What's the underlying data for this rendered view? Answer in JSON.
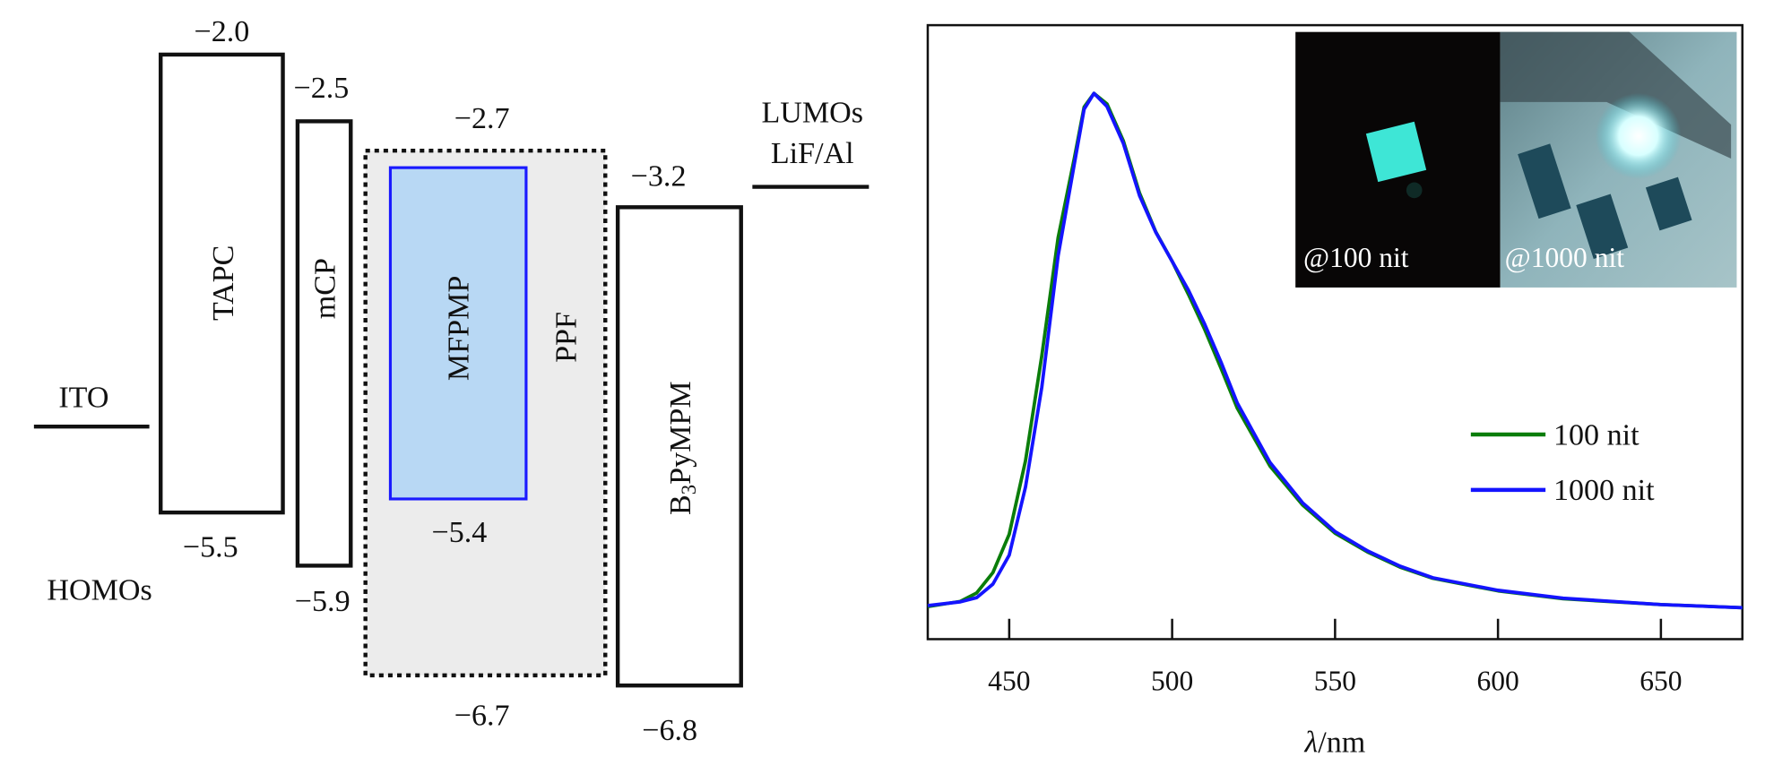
{
  "diagram": {
    "electrodes": {
      "anode": "ITO",
      "cathode": "LiF/Al",
      "lumo_heading": "LUMOs",
      "homo_heading": "HOMOs"
    },
    "layers": [
      {
        "name": "TAPC",
        "lumo": "−2.0",
        "homo": "−5.5"
      },
      {
        "name": "mCP",
        "lumo": "−2.5",
        "homo": "−5.9"
      },
      {
        "name": "PPF",
        "lumo": "−2.7",
        "homo": "−6.7"
      },
      {
        "name": "MFPMP",
        "homo": "−5.4"
      },
      {
        "name_main": "B",
        "name_sub": "3",
        "name_rest": "PyMPM",
        "lumo": "−3.2",
        "homo": "−6.8"
      }
    ],
    "colors": {
      "emitter_fill": "#b8d8f4",
      "emitter_stroke": "#1a1aff",
      "host_fill": "#ececec"
    }
  },
  "chart_data": {
    "type": "line",
    "title": "",
    "xlabel_italic": "λ",
    "xlabel_rest": "/nm",
    "ylabel": "",
    "xlim": [
      425,
      675
    ],
    "ylim": [
      -0.04,
      1.13
    ],
    "xticks": [
      450,
      500,
      550,
      600,
      650
    ],
    "grid": false,
    "legend_position": "right",
    "series": [
      {
        "name": "100 nit",
        "color": "#0a7d0a",
        "x": [
          425,
          435,
          440,
          445,
          450,
          455,
          460,
          465,
          470,
          473,
          476,
          480,
          485,
          490,
          495,
          500,
          505,
          510,
          515,
          520,
          530,
          540,
          550,
          560,
          570,
          580,
          600,
          620,
          650,
          675
        ],
        "y": [
          0.022,
          0.032,
          0.048,
          0.087,
          0.16,
          0.3,
          0.5,
          0.725,
          0.877,
          0.974,
          1.0,
          0.98,
          0.91,
          0.81,
          0.736,
          0.68,
          0.617,
          0.55,
          0.476,
          0.4,
          0.29,
          0.216,
          0.162,
          0.126,
          0.097,
          0.076,
          0.052,
          0.037,
          0.026,
          0.02
        ]
      },
      {
        "name": "1000 nit",
        "color": "#1414ff",
        "x": [
          425,
          435,
          440,
          445,
          450,
          455,
          460,
          465,
          470,
          473,
          476,
          480,
          485,
          490,
          495,
          500,
          505,
          510,
          515,
          520,
          530,
          540,
          550,
          560,
          570,
          580,
          600,
          620,
          650,
          675
        ],
        "y": [
          0.024,
          0.031,
          0.039,
          0.065,
          0.12,
          0.25,
          0.44,
          0.69,
          0.866,
          0.97,
          1.0,
          0.975,
          0.905,
          0.805,
          0.735,
          0.68,
          0.625,
          0.56,
          0.488,
          0.41,
          0.297,
          0.22,
          0.165,
          0.128,
          0.099,
          0.077,
          0.053,
          0.038,
          0.026,
          0.02
        ]
      }
    ],
    "inset": {
      "left_caption": "@100 nit",
      "right_caption": "@1000 nit"
    }
  }
}
